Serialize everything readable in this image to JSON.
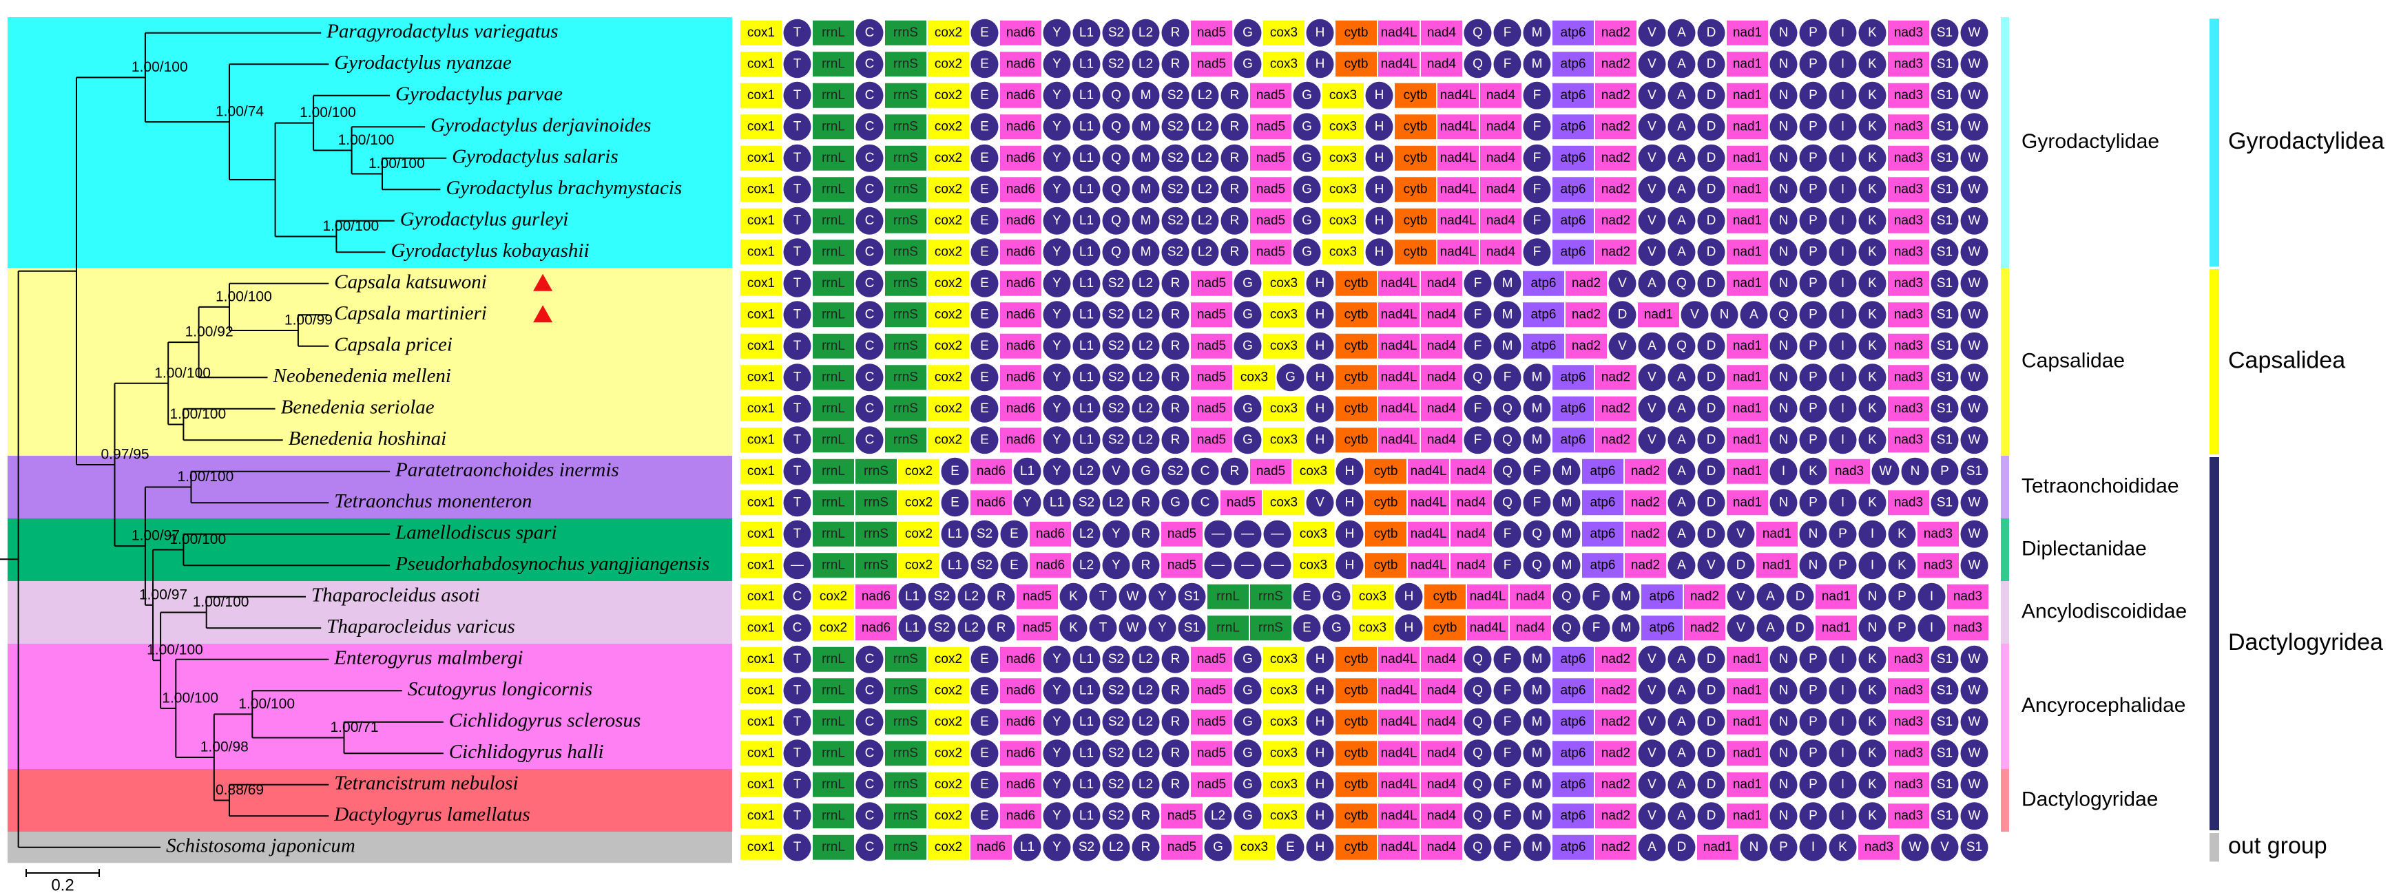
{
  "taxa": [
    {
      "name": "Paragyrodactylus variegatus",
      "genes": [
        "cox1",
        "T",
        "rrnL",
        "C",
        "rrnS",
        "cox2",
        "E",
        "nad6",
        "Y",
        "L1",
        "S2",
        "L2",
        "R",
        "nad5",
        "G",
        "cox3",
        "H",
        "cytb",
        "nad4L",
        "nad4",
        "Q",
        "F",
        "M",
        "atp6",
        "nad2",
        "V",
        "A",
        "D",
        "nad1",
        "N",
        "P",
        "I",
        "K",
        "nad3",
        "S1",
        "W"
      ]
    },
    {
      "name": "Gyrodactylus nyanzae",
      "genes": [
        "cox1",
        "T",
        "rrnL",
        "C",
        "rrnS",
        "cox2",
        "E",
        "nad6",
        "Y",
        "L1",
        "S2",
        "L2",
        "R",
        "nad5",
        "G",
        "cox3",
        "H",
        "cytb",
        "nad4L",
        "nad4",
        "Q",
        "F",
        "M",
        "atp6",
        "nad2",
        "V",
        "A",
        "D",
        "nad1",
        "N",
        "P",
        "I",
        "K",
        "nad3",
        "S1",
        "W"
      ]
    },
    {
      "name": "Gyrodactylus parvae",
      "genes": [
        "cox1",
        "T",
        "rrnL",
        "C",
        "rrnS",
        "cox2",
        "E",
        "nad6",
        "Y",
        "L1",
        "Q",
        "M",
        "S2",
        "L2",
        "R",
        "nad5",
        "G",
        "cox3",
        "H",
        "cytb",
        "nad4L",
        "nad4",
        "F",
        "atp6",
        "nad2",
        "V",
        "A",
        "D",
        "nad1",
        "N",
        "P",
        "I",
        "K",
        "nad3",
        "S1",
        "W"
      ]
    },
    {
      "name": "Gyrodactylus derjavinoides",
      "genes": [
        "cox1",
        "T",
        "rrnL",
        "C",
        "rrnS",
        "cox2",
        "E",
        "nad6",
        "Y",
        "L1",
        "Q",
        "M",
        "S2",
        "L2",
        "R",
        "nad5",
        "G",
        "cox3",
        "H",
        "cytb",
        "nad4L",
        "nad4",
        "F",
        "atp6",
        "nad2",
        "V",
        "A",
        "D",
        "nad1",
        "N",
        "P",
        "I",
        "K",
        "nad3",
        "S1",
        "W"
      ]
    },
    {
      "name": "Gyrodactylus salaris",
      "genes": [
        "cox1",
        "T",
        "rrnL",
        "C",
        "rrnS",
        "cox2",
        "E",
        "nad6",
        "Y",
        "L1",
        "Q",
        "M",
        "S2",
        "L2",
        "R",
        "nad5",
        "G",
        "cox3",
        "H",
        "cytb",
        "nad4L",
        "nad4",
        "F",
        "atp6",
        "nad2",
        "V",
        "A",
        "D",
        "nad1",
        "N",
        "P",
        "I",
        "K",
        "nad3",
        "S1",
        "W"
      ]
    },
    {
      "name": "Gyrodactylus brachymystacis",
      "genes": [
        "cox1",
        "T",
        "rrnL",
        "C",
        "rrnS",
        "cox2",
        "E",
        "nad6",
        "Y",
        "L1",
        "Q",
        "M",
        "S2",
        "L2",
        "R",
        "nad5",
        "G",
        "cox3",
        "H",
        "cytb",
        "nad4L",
        "nad4",
        "F",
        "atp6",
        "nad2",
        "V",
        "A",
        "D",
        "nad1",
        "N",
        "P",
        "I",
        "K",
        "nad3",
        "S1",
        "W"
      ]
    },
    {
      "name": "Gyrodactylus gurleyi",
      "genes": [
        "cox1",
        "T",
        "rrnL",
        "C",
        "rrnS",
        "cox2",
        "E",
        "nad6",
        "Y",
        "L1",
        "Q",
        "M",
        "S2",
        "L2",
        "R",
        "nad5",
        "G",
        "cox3",
        "H",
        "cytb",
        "nad4L",
        "nad4",
        "F",
        "atp6",
        "nad2",
        "V",
        "A",
        "D",
        "nad1",
        "N",
        "P",
        "I",
        "K",
        "nad3",
        "S1",
        "W"
      ]
    },
    {
      "name": "Gyrodactylus kobayashii",
      "genes": [
        "cox1",
        "T",
        "rrnL",
        "C",
        "rrnS",
        "cox2",
        "E",
        "nad6",
        "Y",
        "L1",
        "Q",
        "M",
        "S2",
        "L2",
        "R",
        "nad5",
        "G",
        "cox3",
        "H",
        "cytb",
        "nad4L",
        "nad4",
        "F",
        "atp6",
        "nad2",
        "V",
        "A",
        "D",
        "nad1",
        "N",
        "P",
        "I",
        "K",
        "nad3",
        "S1",
        "W"
      ]
    },
    {
      "name": "Capsala katsuwoni",
      "genes": [
        "cox1",
        "T",
        "rrnL",
        "C",
        "rrnS",
        "cox2",
        "E",
        "nad6",
        "Y",
        "L1",
        "S2",
        "L2",
        "R",
        "nad5",
        "G",
        "cox3",
        "H",
        "cytb",
        "nad4L",
        "nad4",
        "F",
        "M",
        "atp6",
        "nad2",
        "V",
        "A",
        "Q",
        "D",
        "nad1",
        "N",
        "P",
        "I",
        "K",
        "nad3",
        "S1",
        "W"
      ]
    },
    {
      "name": "Capsala martinieri",
      "genes": [
        "cox1",
        "T",
        "rrnL",
        "C",
        "rrnS",
        "cox2",
        "E",
        "nad6",
        "Y",
        "L1",
        "S2",
        "L2",
        "R",
        "nad5",
        "G",
        "cox3",
        "H",
        "cytb",
        "nad4L",
        "nad4",
        "F",
        "M",
        "atp6",
        "nad2",
        "D",
        "nad1",
        "V",
        "N",
        "A",
        "Q",
        "P",
        "I",
        "K",
        "nad3",
        "S1",
        "W"
      ]
    },
    {
      "name": "Capsala pricei",
      "genes": [
        "cox1",
        "T",
        "rrnL",
        "C",
        "rrnS",
        "cox2",
        "E",
        "nad6",
        "Y",
        "L1",
        "S2",
        "L2",
        "R",
        "nad5",
        "G",
        "cox3",
        "H",
        "cytb",
        "nad4L",
        "nad4",
        "F",
        "M",
        "atp6",
        "nad2",
        "V",
        "A",
        "Q",
        "D",
        "nad1",
        "N",
        "P",
        "I",
        "K",
        "nad3",
        "S1",
        "W"
      ]
    },
    {
      "name": "Neobenedenia melleni",
      "genes": [
        "cox1",
        "T",
        "rrnL",
        "C",
        "rrnS",
        "cox2",
        "E",
        "nad6",
        "Y",
        "L1",
        "S2",
        "L2",
        "R",
        "nad5",
        "cox3",
        "G",
        "H",
        "cytb",
        "nad4L",
        "nad4",
        "Q",
        "F",
        "M",
        "atp6",
        "nad2",
        "V",
        "A",
        "D",
        "nad1",
        "N",
        "P",
        "I",
        "K",
        "nad3",
        "S1",
        "W"
      ]
    },
    {
      "name": "Benedenia seriolae",
      "genes": [
        "cox1",
        "T",
        "rrnL",
        "C",
        "rrnS",
        "cox2",
        "E",
        "nad6",
        "Y",
        "L1",
        "S2",
        "L2",
        "R",
        "nad5",
        "G",
        "cox3",
        "H",
        "cytb",
        "nad4L",
        "nad4",
        "F",
        "Q",
        "M",
        "atp6",
        "nad2",
        "V",
        "A",
        "D",
        "nad1",
        "N",
        "P",
        "I",
        "K",
        "nad3",
        "S1",
        "W"
      ]
    },
    {
      "name": "Benedenia hoshinai",
      "genes": [
        "cox1",
        "T",
        "rrnL",
        "C",
        "rrnS",
        "cox2",
        "E",
        "nad6",
        "Y",
        "L1",
        "S2",
        "L2",
        "R",
        "nad5",
        "G",
        "cox3",
        "H",
        "cytb",
        "nad4L",
        "nad4",
        "F",
        "Q",
        "M",
        "atp6",
        "nad2",
        "V",
        "A",
        "D",
        "nad1",
        "N",
        "P",
        "I",
        "K",
        "nad3",
        "S1",
        "W"
      ]
    },
    {
      "name": "Paratetraonchoides inermis",
      "genes": [
        "cox1",
        "T",
        "rrnL",
        "rrnS",
        "cox2",
        "E",
        "nad6",
        "L1",
        "Y",
        "L2",
        "V",
        "G",
        "S2",
        "C",
        "R",
        "nad5",
        "cox3",
        "H",
        "cytb",
        "nad4L",
        "nad4",
        "Q",
        "F",
        "M",
        "atp6",
        "nad2",
        "A",
        "D",
        "nad1",
        "I",
        "K",
        "nad3",
        "W",
        "N",
        "P",
        "S1"
      ]
    },
    {
      "name": "Tetraonchus monenteron",
      "genes": [
        "cox1",
        "T",
        "rrnL",
        "rrnS",
        "cox2",
        "E",
        "nad6",
        "Y",
        "L1",
        "S2",
        "L2",
        "R",
        "G",
        "C",
        "nad5",
        "cox3",
        "V",
        "H",
        "cytb",
        "nad4L",
        "nad4",
        "Q",
        "F",
        "M",
        "atp6",
        "nad2",
        "A",
        "D",
        "nad1",
        "N",
        "P",
        "I",
        "K",
        "nad3",
        "S1",
        "W"
      ]
    },
    {
      "name": "Lamellodiscus spari",
      "genes": [
        "cox1",
        "T",
        "rrnL",
        "rrnS",
        "cox2",
        "L1",
        "S2",
        "E",
        "nad6",
        "L2",
        "Y",
        "R",
        "nad5",
        "—",
        "—",
        "—",
        "cox3",
        "H",
        "cytb",
        "nad4L",
        "nad4",
        "F",
        "Q",
        "M",
        "atp6",
        "nad2",
        "A",
        "D",
        "V",
        "nad1",
        "N",
        "P",
        "I",
        "K",
        "nad3",
        "W"
      ]
    },
    {
      "name": "Pseudorhabdosynochus yangjiangensis",
      "genes": [
        "cox1",
        "—",
        "rrnL",
        "rrnS",
        "cox2",
        "L1",
        "S2",
        "E",
        "nad6",
        "L2",
        "Y",
        "R",
        "nad5",
        "—",
        "—",
        "—",
        "cox3",
        "H",
        "cytb",
        "nad4L",
        "nad4",
        "F",
        "Q",
        "M",
        "atp6",
        "nad2",
        "A",
        "V",
        "D",
        "nad1",
        "N",
        "P",
        "I",
        "K",
        "nad3",
        "W"
      ]
    },
    {
      "name": "Thaparocleidus asoti",
      "genes": [
        "cox1",
        "C",
        "cox2",
        "nad6",
        "L1",
        "S2",
        "L2",
        "R",
        "nad5",
        "K",
        "T",
        "W",
        "Y",
        "S1",
        "rrnL",
        "rrnS",
        "E",
        "G",
        "cox3",
        "H",
        "cytb",
        "nad4L",
        "nad4",
        "Q",
        "F",
        "M",
        "atp6",
        "nad2",
        "V",
        "A",
        "D",
        "nad1",
        "N",
        "P",
        "I",
        "nad3"
      ]
    },
    {
      "name": "Thaparocleidus varicus",
      "genes": [
        "cox1",
        "C",
        "cox2",
        "nad6",
        "L1",
        "S2",
        "L2",
        "R",
        "nad5",
        "K",
        "T",
        "W",
        "Y",
        "S1",
        "rrnL",
        "rrnS",
        "E",
        "G",
        "cox3",
        "H",
        "cytb",
        "nad4L",
        "nad4",
        "Q",
        "F",
        "M",
        "atp6",
        "nad2",
        "V",
        "A",
        "D",
        "nad1",
        "N",
        "P",
        "I",
        "nad3"
      ]
    },
    {
      "name": "Enterogyrus malmbergi",
      "genes": [
        "cox1",
        "T",
        "rrnL",
        "C",
        "rrnS",
        "cox2",
        "E",
        "nad6",
        "Y",
        "L1",
        "S2",
        "L2",
        "R",
        "nad5",
        "G",
        "cox3",
        "H",
        "cytb",
        "nad4L",
        "nad4",
        "Q",
        "F",
        "M",
        "atp6",
        "nad2",
        "V",
        "A",
        "D",
        "nad1",
        "N",
        "P",
        "I",
        "K",
        "nad3",
        "S1",
        "W"
      ]
    },
    {
      "name": "Scutogyrus longicornis",
      "genes": [
        "cox1",
        "T",
        "rrnL",
        "C",
        "rrnS",
        "cox2",
        "E",
        "nad6",
        "Y",
        "L1",
        "S2",
        "L2",
        "R",
        "nad5",
        "G",
        "cox3",
        "H",
        "cytb",
        "nad4L",
        "nad4",
        "Q",
        "F",
        "M",
        "atp6",
        "nad2",
        "V",
        "A",
        "D",
        "nad1",
        "N",
        "P",
        "I",
        "K",
        "nad3",
        "S1",
        "W"
      ]
    },
    {
      "name": "Cichlidogyrus sclerosus",
      "genes": [
        "cox1",
        "T",
        "rrnL",
        "C",
        "rrnS",
        "cox2",
        "E",
        "nad6",
        "Y",
        "L1",
        "S2",
        "L2",
        "R",
        "nad5",
        "G",
        "cox3",
        "H",
        "cytb",
        "nad4L",
        "nad4",
        "Q",
        "F",
        "M",
        "atp6",
        "nad2",
        "V",
        "A",
        "D",
        "nad1",
        "N",
        "P",
        "I",
        "K",
        "nad3",
        "S1",
        "W"
      ]
    },
    {
      "name": "Cichlidogyrus halli",
      "genes": [
        "cox1",
        "T",
        "rrnL",
        "C",
        "rrnS",
        "cox2",
        "E",
        "nad6",
        "Y",
        "L1",
        "S2",
        "L2",
        "R",
        "nad5",
        "G",
        "cox3",
        "H",
        "cytb",
        "nad4L",
        "nad4",
        "Q",
        "F",
        "M",
        "atp6",
        "nad2",
        "V",
        "A",
        "D",
        "nad1",
        "N",
        "P",
        "I",
        "K",
        "nad3",
        "S1",
        "W"
      ]
    },
    {
      "name": "Tetrancistrum nebulosi",
      "genes": [
        "cox1",
        "T",
        "rrnL",
        "C",
        "rrnS",
        "cox2",
        "E",
        "nad6",
        "Y",
        "L1",
        "S2",
        "L2",
        "R",
        "nad5",
        "G",
        "cox3",
        "H",
        "cytb",
        "nad4L",
        "nad4",
        "Q",
        "F",
        "M",
        "atp6",
        "nad2",
        "V",
        "A",
        "D",
        "nad1",
        "N",
        "P",
        "I",
        "K",
        "nad3",
        "S1",
        "W"
      ]
    },
    {
      "name": "Dactylogyrus lamellatus",
      "genes": [
        "cox1",
        "T",
        "rrnL",
        "C",
        "rrnS",
        "cox2",
        "E",
        "nad6",
        "Y",
        "L1",
        "S2",
        "R",
        "nad5",
        "L2",
        "G",
        "cox3",
        "H",
        "cytb",
        "nad4L",
        "nad4",
        "Q",
        "F",
        "M",
        "atp6",
        "nad2",
        "V",
        "A",
        "D",
        "nad1",
        "N",
        "P",
        "I",
        "K",
        "nad3",
        "S1",
        "W"
      ]
    },
    {
      "name": "Schistosoma japonicum",
      "genes": [
        "cox1",
        "T",
        "rrnL",
        "C",
        "rrnS",
        "cox2",
        "nad6",
        "L1",
        "Y",
        "S2",
        "L2",
        "R",
        "nad5",
        "G",
        "cox3",
        "E",
        "H",
        "cytb",
        "nad4L",
        "nad4",
        "Q",
        "F",
        "M",
        "atp6",
        "nad2",
        "A",
        "D",
        "nad1",
        "N",
        "P",
        "I",
        "K",
        "nad3",
        "W",
        "V",
        "S1"
      ]
    }
  ],
  "support_values": [
    "1.00/100",
    "1.00/74",
    "1.00/100",
    "1.00/100",
    "1.00/100",
    "1.00/100",
    "0.97/95",
    "1.00/100",
    "1.00/92",
    "1.00/100",
    "1.00/99",
    "1.00/100",
    "1.00/97",
    "1.00/100",
    "1.00/97",
    "1.00/100",
    "1.00/100",
    "1.00/100",
    "1.00/100",
    "1.00/98",
    "1.00/100",
    "1.00/71",
    "0.88/69"
  ],
  "families": [
    "Gyrodactylidae",
    "Capsalidae",
    "Tetraonchoididae",
    "Diplectanidae",
    "Ancylodiscoididae",
    "Ancyrocephalidae",
    "Dactylogyridae"
  ],
  "suborders": [
    "Gyrodactylidea",
    "Capsalidea",
    "Dactylogyridea",
    "out group"
  ],
  "scale_bar": "0.2"
}
